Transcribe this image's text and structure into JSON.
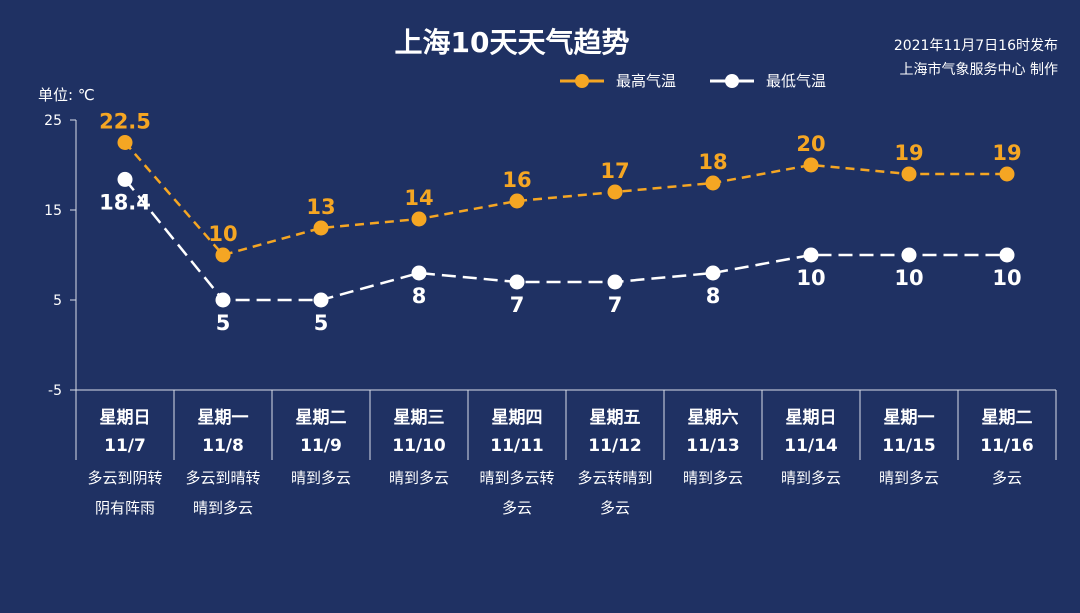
{
  "header": {
    "title": "上海10天天气趋势",
    "issued": "2021年11月7日16时发布",
    "publisher": "上海市气象服务中心 制作"
  },
  "chart_data": {
    "type": "line",
    "unit_label": "单位: ℃",
    "ylim": [
      -5,
      25
    ],
    "yticks": [
      25,
      15,
      5,
      -5
    ],
    "legend_position": "top-right",
    "colors": {
      "high": "#f5a623",
      "low": "#ffffff",
      "background": "#1f3163"
    },
    "categories": [
      {
        "day": "星期日",
        "date": "11/7",
        "weather": [
          "多云到阴转",
          "阴有阵雨"
        ]
      },
      {
        "day": "星期一",
        "date": "11/8",
        "weather": [
          "多云到晴转",
          "晴到多云"
        ]
      },
      {
        "day": "星期二",
        "date": "11/9",
        "weather": [
          "晴到多云"
        ]
      },
      {
        "day": "星期三",
        "date": "11/10",
        "weather": [
          "晴到多云"
        ]
      },
      {
        "day": "星期四",
        "date": "11/11",
        "weather": [
          "晴到多云转",
          "多云"
        ]
      },
      {
        "day": "星期五",
        "date": "11/12",
        "weather": [
          "多云转晴到",
          "多云"
        ]
      },
      {
        "day": "星期六",
        "date": "11/13",
        "weather": [
          "晴到多云"
        ]
      },
      {
        "day": "星期日",
        "date": "11/14",
        "weather": [
          "晴到多云"
        ]
      },
      {
        "day": "星期一",
        "date": "11/15",
        "weather": [
          "晴到多云"
        ]
      },
      {
        "day": "星期二",
        "date": "11/16",
        "weather": [
          "多云"
        ]
      }
    ],
    "series": [
      {
        "name": "最高气温",
        "values": [
          22.5,
          10,
          13,
          14,
          16,
          17,
          18,
          20,
          19,
          19
        ]
      },
      {
        "name": "最低气温",
        "values": [
          18.4,
          5,
          5,
          8,
          7,
          7,
          8,
          10,
          10,
          10
        ]
      }
    ]
  }
}
